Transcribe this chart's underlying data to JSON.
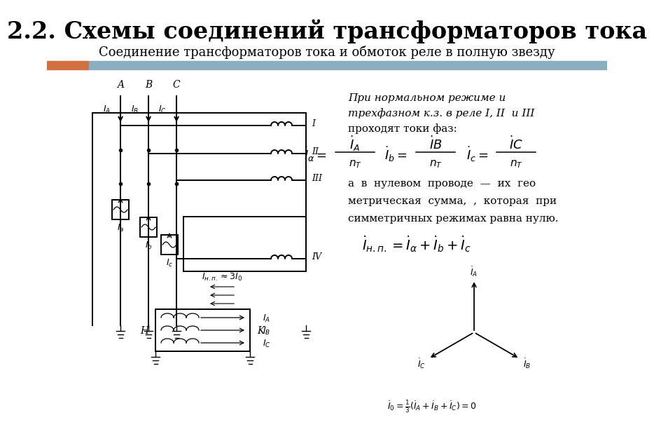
{
  "title": "2.2. Схемы соединений трансформаторов тока",
  "subtitle": "Соединение трансформаторов тока и обмоток реле в полную звезду",
  "title_fontsize": 24,
  "subtitle_fontsize": 13,
  "bg_color": "#ffffff",
  "header_bar_color": "#8aafc0",
  "header_orange_color": "#d27040",
  "text_block": [
    "При нормальном режиме и",
    "трехфазном к.з. в реле I, II  и III",
    "проходят токи фаз:"
  ],
  "text_block2": [
    "а  в  нулевом  проводе  —  их  гео",
    "метрическая  сумма,  ,  которая  при",
    "симметричных режимах равна нулю."
  ]
}
